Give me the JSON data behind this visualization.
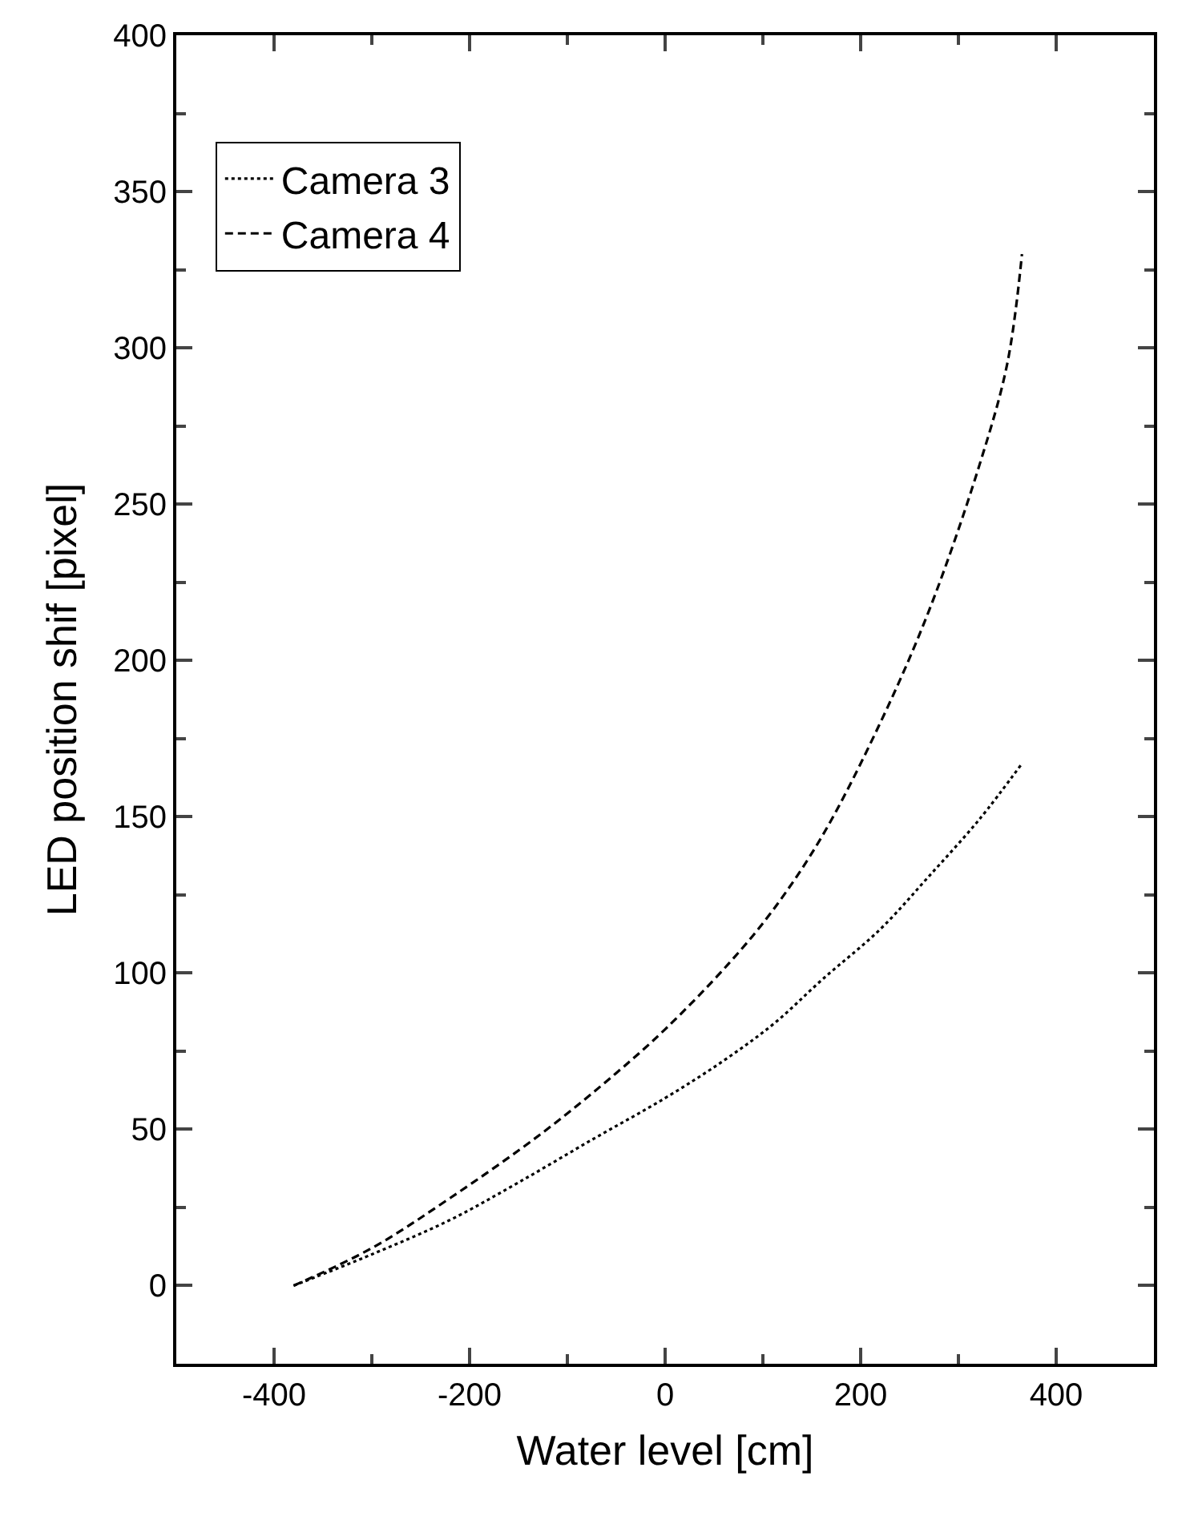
{
  "chart_data": {
    "type": "line",
    "xlabel": "Water level [cm]",
    "ylabel": "LED position shif [pixel]",
    "xlim": [
      -500,
      500
    ],
    "xticks": [
      -400,
      -200,
      0,
      200,
      400
    ],
    "ylim": [
      -25,
      400
    ],
    "yticks": [
      0,
      50,
      100,
      150,
      200,
      250,
      300,
      350,
      400
    ],
    "legend": "top left",
    "marker": "none",
    "series": [
      {
        "name": "Camera 3",
        "color": "#000000",
        "line_style": "dotted",
        "x": [
          -380,
          -300,
          -220,
          -150,
          -73,
          0,
          60,
          112,
          161,
          220,
          270,
          321,
          365
        ],
        "values": [
          0,
          10,
          21,
          33,
          47,
          60,
          72,
          84,
          98,
          114,
          131,
          149,
          167
        ]
      },
      {
        "name": "Camera 4",
        "color": "#000000",
        "line_style": "dashed",
        "x": [
          -380,
          -300,
          -220,
          -125,
          -50,
          0,
          65,
          110,
          161,
          220,
          270,
          321,
          350,
          365
        ],
        "values": [
          0,
          12,
          28,
          49,
          68,
          82,
          103,
          120,
          144,
          180,
          216,
          262,
          295,
          330
        ]
      }
    ]
  }
}
